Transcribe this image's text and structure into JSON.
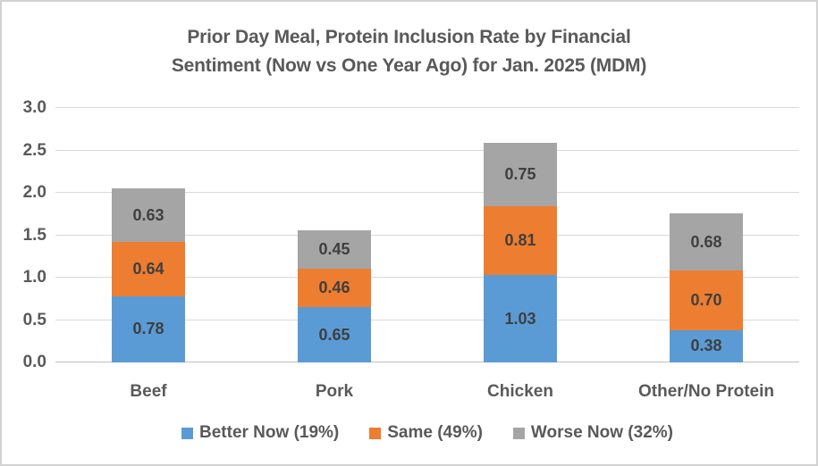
{
  "title": "Prior Day Meal, Protein Inclusion Rate by Financial Sentiment (Now vs One Year Ago) for Jan. 2025 (MDM)",
  "title_lines": {
    "line1": "Prior Day Meal, Protein Inclusion Rate by Financial",
    "line2": "Sentiment (Now vs One Year Ago) for Jan. 2025 (MDM)"
  },
  "chart_data": {
    "type": "bar",
    "stacked": true,
    "title": "Prior Day Meal, Protein Inclusion Rate by Financial Sentiment (Now vs One Year Ago) for Jan. 2025 (MDM)",
    "categories": [
      "Beef",
      "Pork",
      "Chicken",
      "Other/No Protein"
    ],
    "series": [
      {
        "name": "Better Now (19%)",
        "color": "#5b9bd5",
        "values": [
          0.78,
          0.65,
          1.03,
          0.38
        ]
      },
      {
        "name": "Same (49%)",
        "color": "#ed7d31",
        "values": [
          0.64,
          0.46,
          0.81,
          0.7
        ]
      },
      {
        "name": "Worse Now (32%)",
        "color": "#a5a5a5",
        "values": [
          0.63,
          0.45,
          0.75,
          0.68
        ]
      }
    ],
    "totals": [
      2.05,
      1.56,
      2.59,
      1.76
    ],
    "xlabel": "",
    "ylabel": "",
    "ylim": [
      0.0,
      3.0
    ],
    "ytick_step": 0.5,
    "ytick_labels": [
      "0.0",
      "0.5",
      "1.0",
      "1.5",
      "2.0",
      "2.5",
      "3.0"
    ],
    "grid": true,
    "legend_position": "bottom",
    "value_labels": "inside-center, 2 decimal places"
  },
  "colors": {
    "series_blue": "#5b9bd5",
    "series_orange": "#ed7d31",
    "series_gray": "#a5a5a5",
    "title_text": "#595959",
    "axis_text": "#595959",
    "bar_label_text": "#3f3f3f",
    "gridline": "#d9d9d9",
    "axis_line": "#bfbfbf",
    "frame_border": "#d2d2d2"
  }
}
